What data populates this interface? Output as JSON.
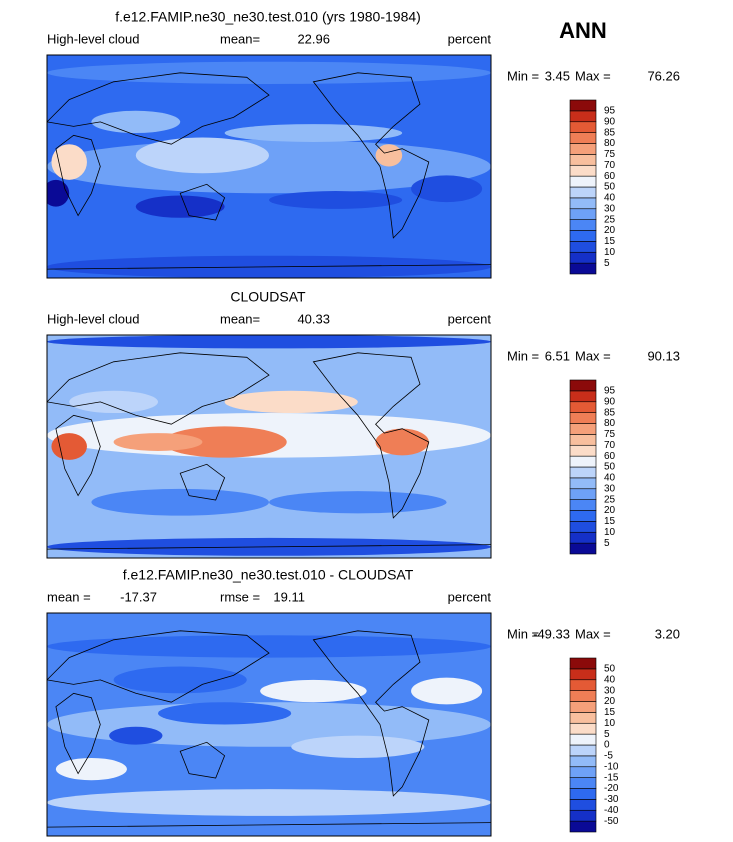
{
  "header": {
    "season": "ANN"
  },
  "panels": [
    {
      "title": "f.e12.FAMIP.ne30_ne30.test.010 (yrs 1980-1984)",
      "left_label": "High-level cloud",
      "mean_label": "mean=",
      "mean": 22.96,
      "units": "percent",
      "min_label": "Min =",
      "min": 3.45,
      "max_label": "Max =",
      "max": 76.26,
      "levels": [
        5,
        10,
        15,
        20,
        25,
        30,
        40,
        50,
        60,
        70,
        75,
        80,
        85,
        90,
        95
      ],
      "colors": [
        "#0a0a96",
        "#1530c8",
        "#1f4ee0",
        "#2e6af0",
        "#4b86f5",
        "#6ea1f7",
        "#92bbf8",
        "#bcd4fa",
        "#eef3fb",
        "#fbdcc8",
        "#f8bf9e",
        "#f5a07a",
        "#ef7e56",
        "#e45a35",
        "#c82e1a",
        "#8b0a0a"
      ]
    },
    {
      "title": "CLOUDSAT",
      "left_label": "High-level cloud",
      "mean_label": "mean=",
      "mean": 40.33,
      "units": "percent",
      "min_label": "Min =",
      "min": 6.51,
      "max_label": "Max =",
      "max": 90.13,
      "levels": [
        5,
        10,
        15,
        20,
        25,
        30,
        40,
        50,
        60,
        70,
        75,
        80,
        85,
        90,
        95
      ],
      "colors": [
        "#0a0a96",
        "#1530c8",
        "#1f4ee0",
        "#2e6af0",
        "#4b86f5",
        "#6ea1f7",
        "#92bbf8",
        "#bcd4fa",
        "#eef3fb",
        "#fbdcc8",
        "#f8bf9e",
        "#f5a07a",
        "#ef7e56",
        "#e45a35",
        "#c82e1a",
        "#8b0a0a"
      ]
    },
    {
      "title": "f.e12.FAMIP.ne30_ne30.test.010 - CLOUDSAT",
      "mean_label": "mean =",
      "mean": -17.37,
      "rmse_label": "rmse =",
      "rmse": 19.11,
      "units": "percent",
      "min_label": "Min =",
      "min": -49.33,
      "max_label": "Max =",
      "max": 3.2,
      "max_label_text": "3.20",
      "levels": [
        -50,
        -40,
        -30,
        -20,
        -15,
        -10,
        -5,
        0,
        5,
        10,
        15,
        20,
        30,
        40,
        50
      ],
      "colors": [
        "#0a0a96",
        "#1530c8",
        "#1f4ee0",
        "#2e6af0",
        "#4b86f5",
        "#6ea1f7",
        "#92bbf8",
        "#bcd4fa",
        "#eef3fb",
        "#fbdcc8",
        "#f8bf9e",
        "#f5a07a",
        "#ef7e56",
        "#e45a35",
        "#c82e1a",
        "#8b0a0a"
      ]
    }
  ]
}
